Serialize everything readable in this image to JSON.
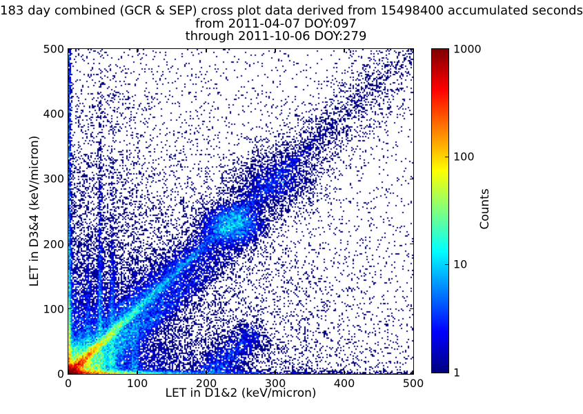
{
  "figure": {
    "title_line1": "183 day combined (GCR & SEP) cross plot data derived from 15498400 accumulated seconds",
    "title_line2": "from 2011-04-07 DOY:097",
    "title_line3": "through 2011-10-06 DOY:279"
  },
  "axes": {
    "x": {
      "label": "LET in D1&2 (keV/micron)",
      "min": 0,
      "max": 500,
      "tick_values": [
        0,
        100,
        200,
        300,
        400,
        500
      ],
      "ticks": [
        "0",
        "100",
        "200",
        "300",
        "400",
        "500"
      ]
    },
    "y": {
      "label": "LET in D3&4 (keV/micron)",
      "min": 0,
      "max": 500,
      "tick_values": [
        0,
        100,
        200,
        300,
        400,
        500
      ],
      "ticks": [
        "0",
        "100",
        "200",
        "300",
        "400",
        "500"
      ]
    }
  },
  "colorbar": {
    "label": "Counts",
    "scale": "log",
    "min": 1,
    "max": 1000,
    "colormap": "jet",
    "tick_values": [
      1000,
      100,
      10,
      1
    ],
    "ticks": [
      "1000",
      "100",
      "10",
      "1"
    ]
  },
  "chart_data": {
    "type": "heatmap",
    "title": "183 day combined (GCR & SEP) cross plot data derived from 15498400 accumulated seconds",
    "subtitle": [
      "from 2011-04-07 DOY:097",
      "through 2011-10-06 DOY:279"
    ],
    "xlabel": "LET in D1&2 (keV/micron)",
    "ylabel": "LET in D3&4 (keV/micron)",
    "xlim": [
      0,
      500
    ],
    "ylim": [
      0,
      500
    ],
    "days": 183,
    "accumulated_seconds": 15498400,
    "colorbar": {
      "label": "Counts",
      "scale": "log",
      "range": [
        1,
        1000
      ],
      "colormap": "jet"
    },
    "point_color_min": "#00007f",
    "description": "2D density cross plot of LET in detector pair D1&2 vs LET in D3&4, counts on a log color scale (jet, 1-1000). Density peaks in a red-orange hotspot at the origin, along a warm band hugging the x-axis out to ~100 keV/micron, along a dense column hugging the y-axis, and along the y=x diagonal (bright red-yellow-green-cyan near the origin, diffuse blue beyond) with a secondary blue cluster near (240,230). Faint vertical stripes of enhanced counts appear near x=29, 46, 64 and 96; the rest of the plane is sparse dark-blue single-count speckle thinning toward high LET.",
    "density_model": {
      "cell_size_px": 2,
      "count_jitter": 1.1,
      "features": [
        {
          "name": "origin-hotspot",
          "type": "gauss2d",
          "cx": 4,
          "cy": 3,
          "sx": 7,
          "sy": 5,
          "amp": 1100
        },
        {
          "name": "origin-halo",
          "type": "gauss2d",
          "cx": 10,
          "cy": 8,
          "sx": 24,
          "sy": 18,
          "amp": 45
        },
        {
          "name": "lower-left-fill",
          "type": "exp2d",
          "sx": 80,
          "sy": 80,
          "amp": 6
        },
        {
          "name": "wide-fill",
          "type": "exp2d",
          "sx": 250,
          "sy": 230,
          "amp": 0.6
        },
        {
          "name": "uniform-background",
          "type": "const",
          "amp": 0.012
        },
        {
          "name": "x-axis-band",
          "type": "hband",
          "sy": 2.6,
          "amps": [
            700,
            25,
            1.8
          ],
          "decays": [
            27,
            90,
            500
          ]
        },
        {
          "name": "y-axis-band",
          "type": "vband",
          "sx": 2.2,
          "amps": [
            160,
            12,
            2.5
          ],
          "decays": [
            35,
            160,
            100000
          ]
        },
        {
          "name": "diagonal-bright",
          "type": "diag",
          "sigma": 3.2,
          "amps": [
            520,
            20
          ],
          "decays": [
            28,
            130
          ]
        },
        {
          "name": "diagonal-diffuse",
          "type": "diag",
          "sigma": 13,
          "amps": [
            8
          ],
          "decays": [
            150
          ]
        },
        {
          "name": "diagonal-wide",
          "type": "diag",
          "sigma": 30,
          "amps": [
            1.1
          ],
          "decays": [
            420
          ]
        },
        {
          "name": "diagonal-blob",
          "type": "gauss2d",
          "cx": 238,
          "cy": 230,
          "sx": 20,
          "sy": 15,
          "amp": 7
        },
        {
          "name": "diagonal-blob-2",
          "type": "gauss2d",
          "cx": 302,
          "cy": 295,
          "sx": 30,
          "sy": 22,
          "amp": 1.3
        },
        {
          "name": "sub-diagonal-band",
          "type": "band",
          "x0": 50,
          "y0": 22,
          "x1": 285,
          "y1": 230,
          "sigma": 9,
          "amp": 4.5,
          "decay": 130
        },
        {
          "name": "vertical-stripe-1",
          "type": "vstripe",
          "cx": 29,
          "sigma": 1.8,
          "amp": 9,
          "decay": 60
        },
        {
          "name": "vertical-stripe-2",
          "type": "vstripe",
          "cx": 46,
          "sigma": 2.0,
          "amp": 11,
          "decay": 115
        },
        {
          "name": "vertical-stripe-3",
          "type": "vstripe",
          "cx": 64,
          "sigma": 2.2,
          "amp": 9,
          "decay": 100
        },
        {
          "name": "vertical-stripe-4",
          "type": "vstripe",
          "cx": 96,
          "sigma": 3.5,
          "amp": 5,
          "decay": 60
        },
        {
          "name": "low-cluster-230",
          "type": "band",
          "x0": 210,
          "y0": 2,
          "x1": 265,
          "y1": 60,
          "sigma": 14,
          "amp": 2.5,
          "decay": 200
        }
      ]
    }
  }
}
